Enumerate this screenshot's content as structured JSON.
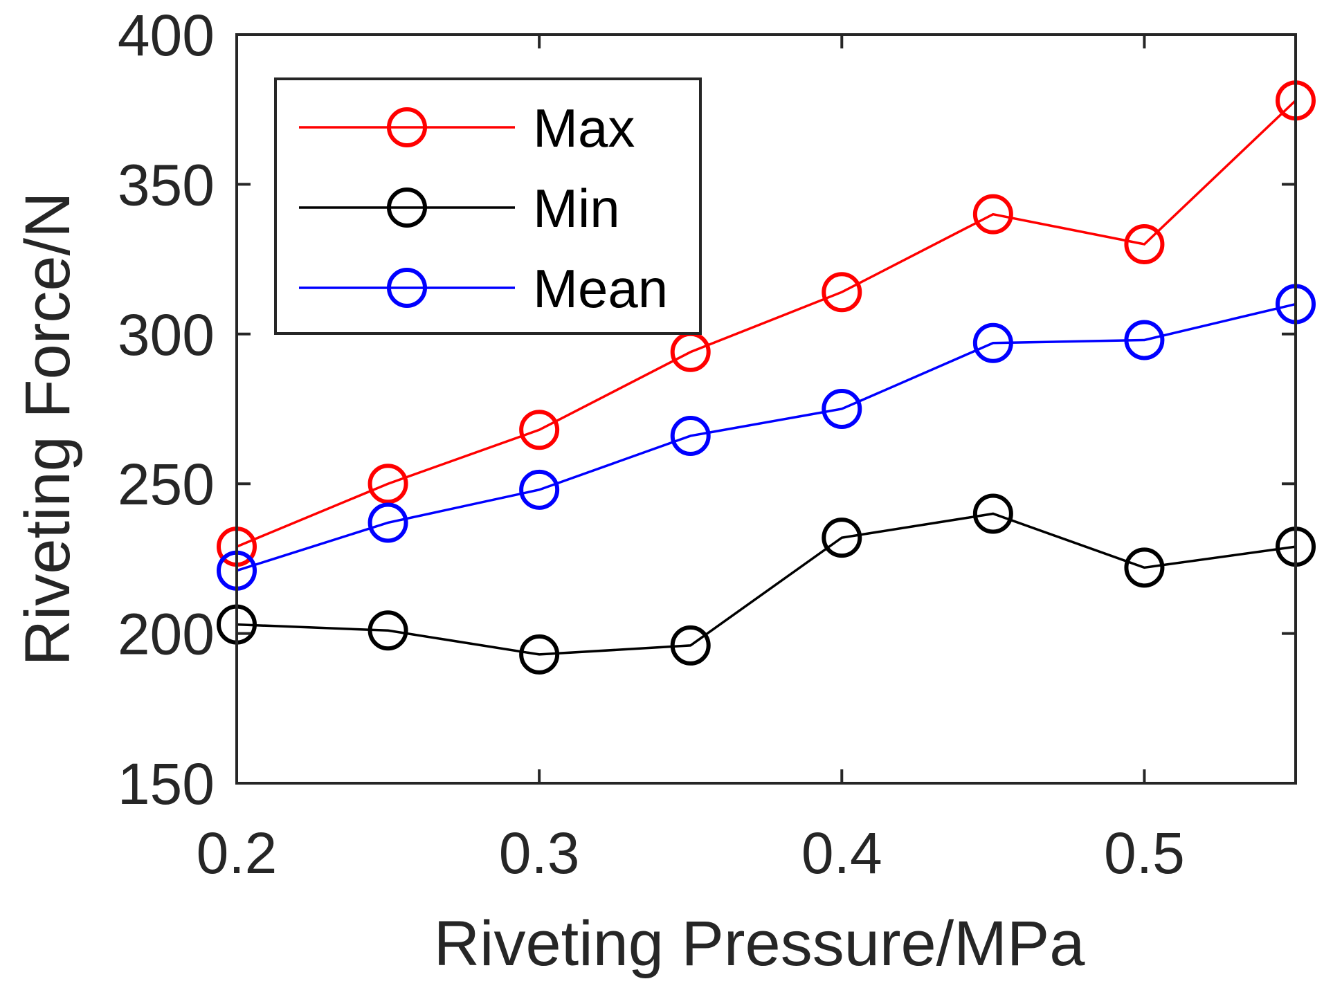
{
  "chart_data": {
    "type": "line",
    "title": "",
    "xlabel": "Riveting Pressure/MPa",
    "ylabel": "Riveting Force/N",
    "xlim": [
      0.2,
      0.55
    ],
    "ylim": [
      150,
      400
    ],
    "xticks": [
      0.2,
      0.3,
      0.4,
      0.5
    ],
    "xtick_labels": [
      "0.2",
      "0.3",
      "0.4",
      "0.5"
    ],
    "yticks": [
      150,
      200,
      250,
      300,
      350,
      400
    ],
    "ytick_labels": [
      "150",
      "200",
      "250",
      "300",
      "350",
      "400"
    ],
    "grid": false,
    "legend_position": "top-left",
    "marker": "circle-open",
    "x": [
      0.2,
      0.25,
      0.3,
      0.35,
      0.4,
      0.45,
      0.5,
      0.55
    ],
    "series": [
      {
        "name": "Max",
        "color": "#ff0000",
        "values": [
          229,
          250,
          268,
          294,
          314,
          340,
          330,
          378
        ]
      },
      {
        "name": "Min",
        "color": "#000000",
        "values": [
          203,
          201,
          193,
          196,
          232,
          240,
          222,
          229
        ]
      },
      {
        "name": "Mean",
        "color": "#0000ff",
        "values": [
          221,
          237,
          248,
          266,
          275,
          297,
          298,
          310
        ]
      }
    ]
  }
}
